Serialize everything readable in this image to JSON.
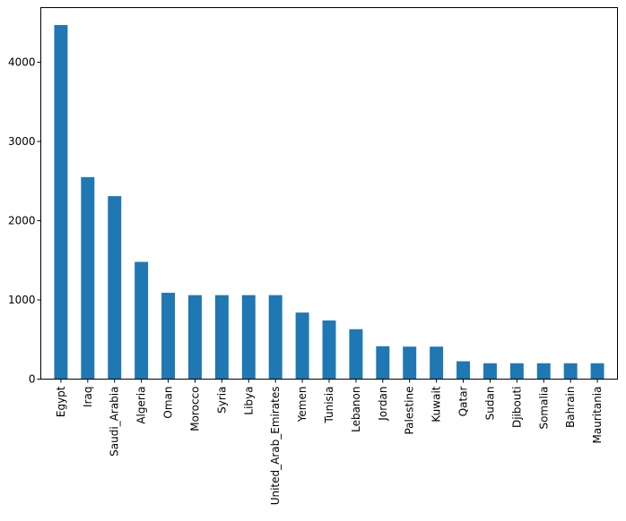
{
  "chart_data": {
    "type": "bar",
    "title": "",
    "xlabel": "",
    "ylabel": "",
    "categories": [
      "Egypt",
      "Iraq",
      "Saudi_Arabia",
      "Algeria",
      "Oman",
      "Morocco",
      "Syria",
      "Libya",
      "United_Arab_Emirates",
      "Yemen",
      "Tunisia",
      "Lebanon",
      "Jordan",
      "Palestine",
      "Kuwait",
      "Qatar",
      "Sudan",
      "Djibouti",
      "Somalia",
      "Bahrain",
      "Mauritania"
    ],
    "values": [
      4470,
      2550,
      2310,
      1480,
      1090,
      1060,
      1060,
      1060,
      1060,
      840,
      740,
      630,
      415,
      410,
      410,
      225,
      200,
      200,
      200,
      200,
      200
    ],
    "ylim": [
      0,
      4690
    ],
    "yticks": [
      0,
      1000,
      2000,
      3000,
      4000
    ],
    "ytick_labels": [
      "0",
      "1000",
      "2000",
      "3000",
      "4000"
    ],
    "grid": false,
    "legend": "none",
    "bar_color": "#1f77b4"
  }
}
